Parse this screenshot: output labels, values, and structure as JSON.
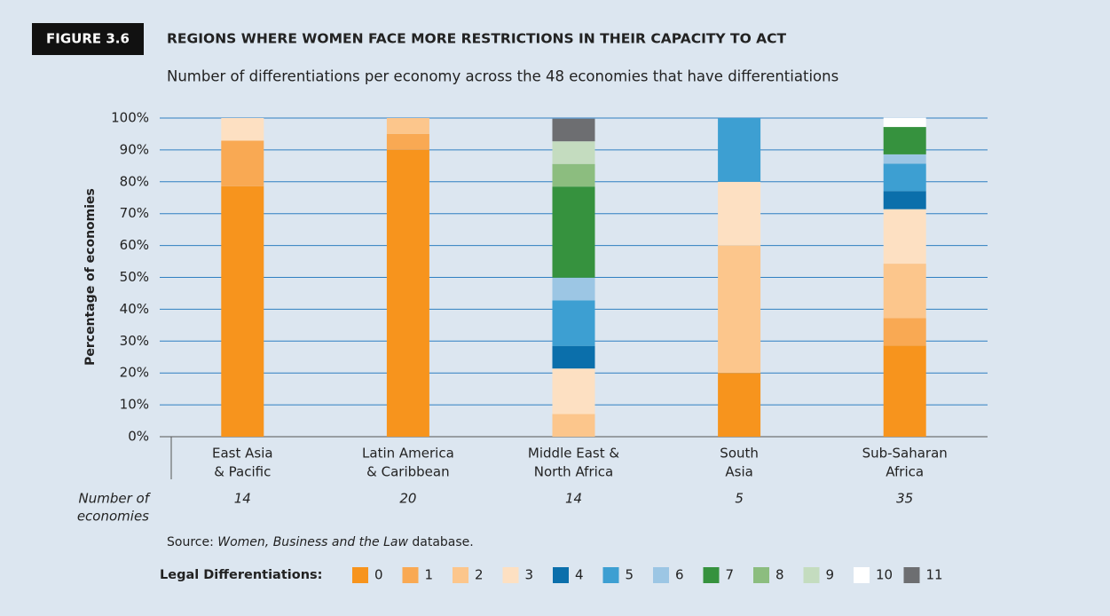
{
  "figure_label": "FIGURE 3.6",
  "chart_data": {
    "type": "stacked_bar",
    "title": "REGIONS WHERE WOMEN FACE MORE RESTRICTIONS IN THEIR CAPACITY TO ACT",
    "subtitle": "Number of differentiations per economy across the 48 economies that have differentiations",
    "y_label": "Percentage of economies",
    "categories": [
      [
        "East Asia",
        "& Pacific"
      ],
      [
        "Latin America",
        "& Caribbean"
      ],
      [
        "Middle East &",
        "North Africa"
      ],
      [
        "South",
        "Asia"
      ],
      [
        "Sub-Saharan",
        "Africa"
      ]
    ],
    "count_label": [
      "Number of",
      "economies"
    ],
    "counts": [
      14,
      20,
      14,
      5,
      35
    ],
    "legend_title": "Legal Differentiations:",
    "ylim": [
      0,
      100
    ],
    "yticks": [
      {
        "value": 0,
        "label": "0%"
      },
      {
        "value": 10,
        "label": "10%"
      },
      {
        "value": 20,
        "label": "20%"
      },
      {
        "value": 30,
        "label": "30%"
      },
      {
        "value": 40,
        "label": "40%"
      },
      {
        "value": 50,
        "label": "50%"
      },
      {
        "value": 60,
        "label": "60%"
      },
      {
        "value": 70,
        "label": "70%"
      },
      {
        "value": 80,
        "label": "80%"
      },
      {
        "value": 90,
        "label": "90%"
      },
      {
        "value": 100,
        "label": "100%"
      }
    ],
    "grid": true,
    "series": [
      {
        "name": "0",
        "color": "#f7941d",
        "values": [
          78.6,
          90,
          0,
          20,
          28.6
        ]
      },
      {
        "name": "1",
        "color": "#f9a953",
        "values": [
          14.3,
          5,
          0,
          0,
          8.6
        ]
      },
      {
        "name": "2",
        "color": "#fcc68c",
        "values": [
          0,
          5,
          7.1,
          40,
          17.1
        ]
      },
      {
        "name": "3",
        "color": "#fde0c2",
        "values": [
          7.1,
          0,
          14.3,
          20,
          17.1
        ]
      },
      {
        "name": "4",
        "color": "#0b6fab",
        "values": [
          0,
          0,
          7.1,
          0,
          5.7
        ]
      },
      {
        "name": "5",
        "color": "#3d9fd2",
        "values": [
          0,
          0,
          14.3,
          20,
          8.6
        ]
      },
      {
        "name": "6",
        "color": "#9cc6e4",
        "values": [
          0,
          0,
          7.1,
          0,
          2.9
        ]
      },
      {
        "name": "7",
        "color": "#36923e",
        "values": [
          0,
          0,
          28.6,
          0,
          8.6
        ]
      },
      {
        "name": "8",
        "color": "#8cbd7f",
        "values": [
          0,
          0,
          7.1,
          0,
          0
        ]
      },
      {
        "name": "9",
        "color": "#c4dcbf",
        "values": [
          0,
          0,
          7.1,
          0,
          0
        ]
      },
      {
        "name": "10",
        "color": "#ffffff",
        "values": [
          0,
          0,
          0,
          0,
          2.9
        ]
      },
      {
        "name": "11",
        "color": "#6d6e71",
        "values": [
          0,
          0,
          7.1,
          0,
          0
        ]
      }
    ]
  },
  "source": {
    "prefix": "Source:",
    "title": "Women, Business and the Law",
    "suffix": "database."
  }
}
